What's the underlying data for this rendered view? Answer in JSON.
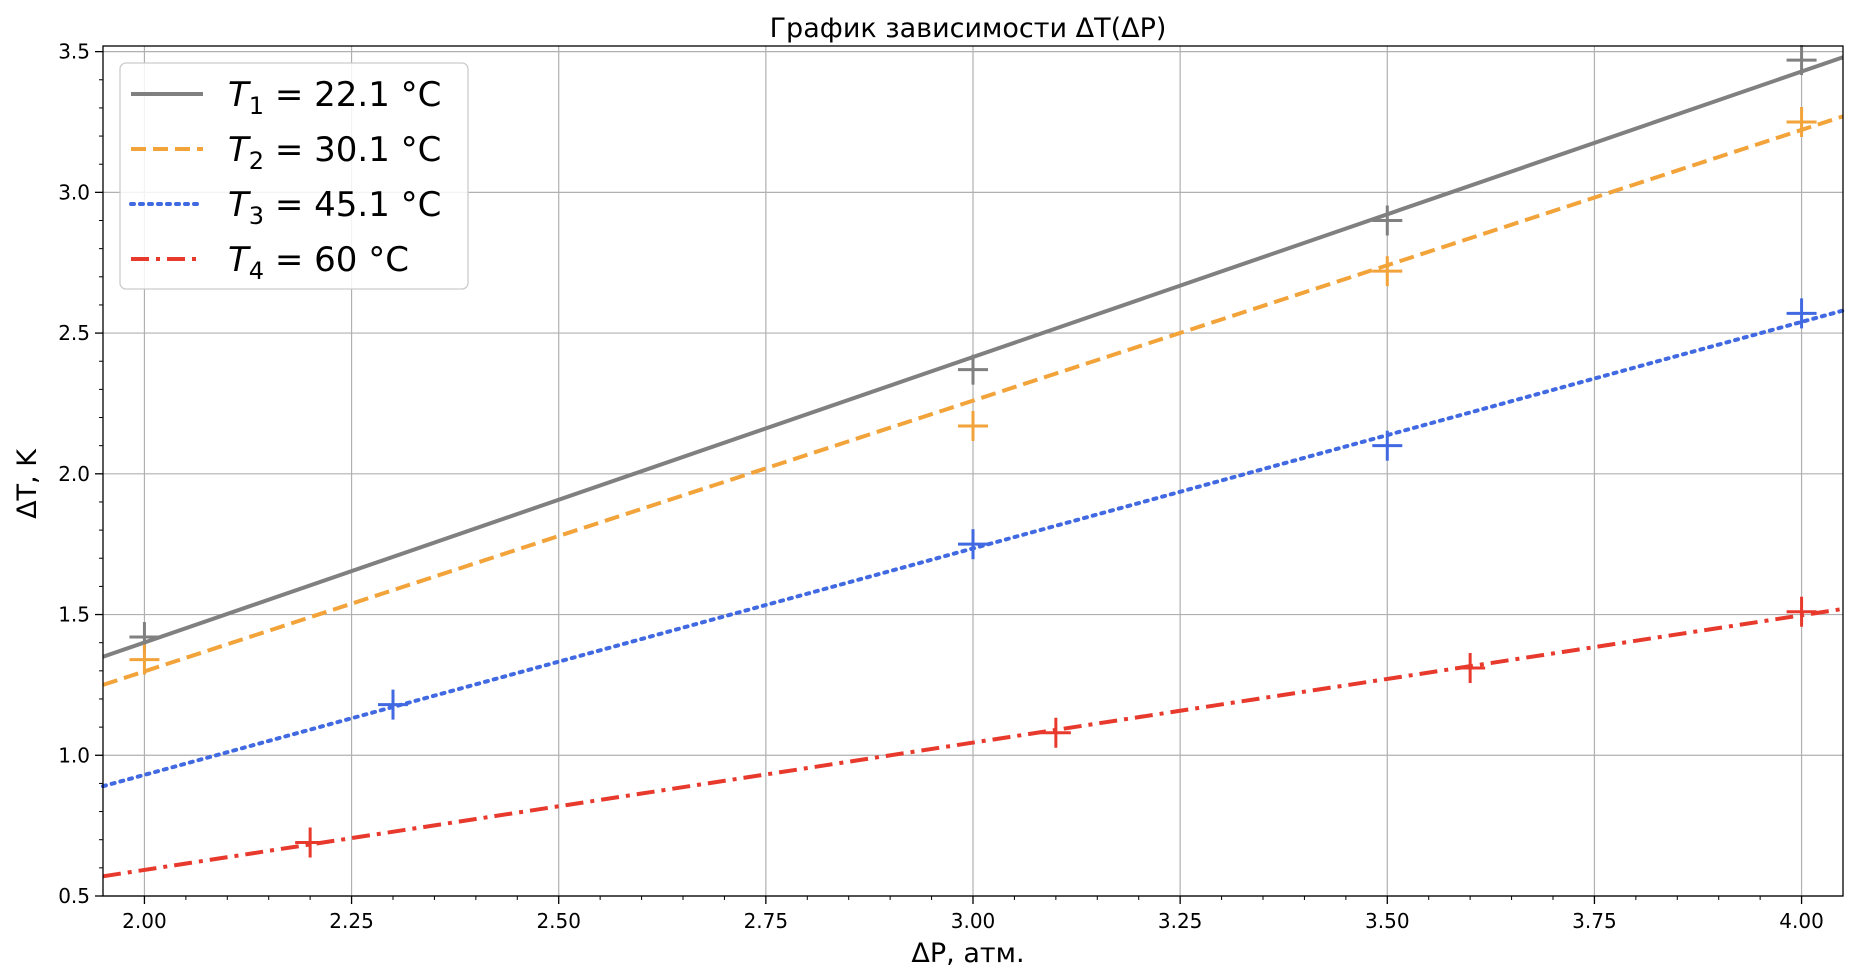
{
  "chart_data": {
    "type": "line",
    "title": "График зависимости ΔT(ΔP)",
    "xlabel": "ΔP, атм.",
    "ylabel": "ΔT, K",
    "xlim": [
      1.95,
      4.05
    ],
    "ylim": [
      0.5,
      3.52
    ],
    "grid": true,
    "legend_position": "top-left",
    "x_ticks": [
      2.0,
      2.25,
      2.5,
      2.75,
      3.0,
      3.25,
      3.5,
      3.75,
      4.0
    ],
    "x_tick_labels": [
      "2.00",
      "2.25",
      "2.50",
      "2.75",
      "3.00",
      "3.25",
      "3.50",
      "3.75",
      "4.00"
    ],
    "y_ticks": [
      0.5,
      1.0,
      1.5,
      2.0,
      2.5,
      3.0,
      3.5
    ],
    "y_tick_labels": [
      "0.5",
      "1.0",
      "1.5",
      "2.0",
      "2.5",
      "3.0",
      "3.5"
    ],
    "series": [
      {
        "name": "T1 = 22.1 °C",
        "label_main": "T",
        "label_sub": "1",
        "label_rest": " = 22.1 °C",
        "color": "#808080",
        "line_style": "solid",
        "points": [
          [
            2.0,
            1.42
          ],
          [
            3.0,
            2.37
          ],
          [
            3.5,
            2.9
          ],
          [
            4.0,
            3.47
          ]
        ],
        "fit": [
          [
            1.95,
            1.35
          ],
          [
            4.05,
            3.48
          ]
        ]
      },
      {
        "name": "T2 = 30.1 °C",
        "label_main": "T",
        "label_sub": "2",
        "label_rest": " = 30.1 °C",
        "color": "#f2a33a",
        "line_style": "dashed",
        "points": [
          [
            2.0,
            1.34
          ],
          [
            3.0,
            2.17
          ],
          [
            3.5,
            2.72
          ],
          [
            4.0,
            3.25
          ]
        ],
        "fit": [
          [
            1.95,
            1.25
          ],
          [
            4.05,
            3.27
          ]
        ]
      },
      {
        "name": "T3 = 45.1 °C",
        "label_main": "T",
        "label_sub": "3",
        "label_rest": " = 45.1 °C",
        "color": "#4169e1",
        "line_style": "dotted",
        "points": [
          [
            2.3,
            1.18
          ],
          [
            3.0,
            1.75
          ],
          [
            3.5,
            2.1
          ],
          [
            4.0,
            2.57
          ]
        ],
        "fit": [
          [
            1.95,
            0.89
          ],
          [
            4.05,
            2.58
          ]
        ]
      },
      {
        "name": "T4 = 60 °C",
        "label_main": "T",
        "label_sub": "4",
        "label_rest": " = 60 °C",
        "color": "#e8392d",
        "line_style": "dashdot",
        "points": [
          [
            2.2,
            0.69
          ],
          [
            3.1,
            1.08
          ],
          [
            3.6,
            1.31
          ],
          [
            4.0,
            1.51
          ]
        ],
        "fit": [
          [
            1.95,
            0.57
          ],
          [
            4.05,
            1.52
          ]
        ]
      }
    ]
  }
}
